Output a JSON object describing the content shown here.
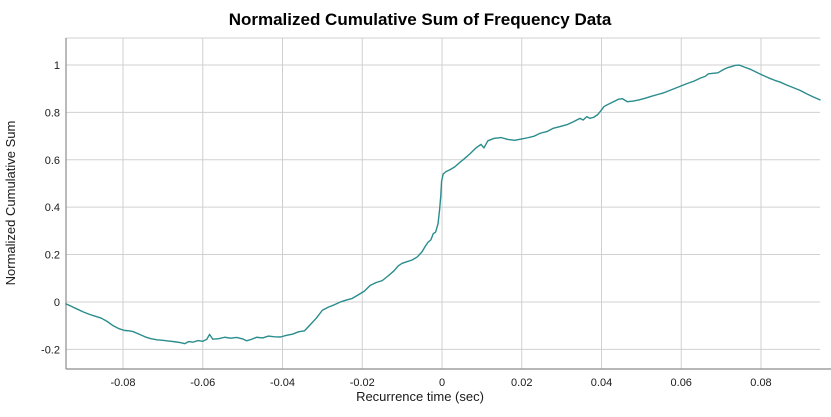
{
  "chart_data": {
    "type": "line",
    "title": "Normalized Cumulative Sum of Frequency Data",
    "xlabel": "Recurrence time (sec)",
    "ylabel": "Normalized Cumulative Sum",
    "xlim": [
      -0.0943,
      0.0948
    ],
    "ylim": [
      -0.283,
      1.114
    ],
    "xticks": [
      -0.08,
      -0.06,
      -0.04,
      -0.02,
      0,
      0.02,
      0.04,
      0.06,
      0.08
    ],
    "xtick_labels": [
      "-0.08",
      "-0.06",
      "-0.04",
      "-0.02",
      "0",
      "0.02",
      "0.04",
      "0.06",
      "0.08"
    ],
    "yticks": [
      -0.2,
      0,
      0.2,
      0.4,
      0.6,
      0.8,
      1
    ],
    "ytick_labels": [
      "-0.2",
      "0",
      "0.2",
      "0.4",
      "0.6",
      "0.8",
      "1"
    ],
    "grid": true,
    "legend": "none",
    "line_color": "#2a8c8c",
    "grid_color": "#d0d0d0",
    "axis_color": "#8c8c8c",
    "background_color": "#ffffff",
    "points": [
      [
        -0.0943,
        -0.008
      ],
      [
        -0.093,
        -0.018
      ],
      [
        -0.0915,
        -0.03
      ],
      [
        -0.09,
        -0.042
      ],
      [
        -0.0885,
        -0.052
      ],
      [
        -0.087,
        -0.06
      ],
      [
        -0.0855,
        -0.068
      ],
      [
        -0.084,
        -0.082
      ],
      [
        -0.0825,
        -0.1
      ],
      [
        -0.081,
        -0.113
      ],
      [
        -0.0797,
        -0.12
      ],
      [
        -0.0785,
        -0.122
      ],
      [
        -0.0775,
        -0.125
      ],
      [
        -0.076,
        -0.136
      ],
      [
        -0.0745,
        -0.147
      ],
      [
        -0.073,
        -0.155
      ],
      [
        -0.0715,
        -0.16
      ],
      [
        -0.07,
        -0.162
      ],
      [
        -0.0685,
        -0.165
      ],
      [
        -0.067,
        -0.168
      ],
      [
        -0.0655,
        -0.172
      ],
      [
        -0.0645,
        -0.176
      ],
      [
        -0.0635,
        -0.167
      ],
      [
        -0.0625,
        -0.17
      ],
      [
        -0.0612,
        -0.163
      ],
      [
        -0.06,
        -0.166
      ],
      [
        -0.059,
        -0.158
      ],
      [
        -0.0583,
        -0.137
      ],
      [
        -0.0575,
        -0.157
      ],
      [
        -0.056,
        -0.155
      ],
      [
        -0.0545,
        -0.149
      ],
      [
        -0.053,
        -0.153
      ],
      [
        -0.0515,
        -0.15
      ],
      [
        -0.05,
        -0.156
      ],
      [
        -0.049,
        -0.164
      ],
      [
        -0.0478,
        -0.158
      ],
      [
        -0.0465,
        -0.149
      ],
      [
        -0.045,
        -0.152
      ],
      [
        -0.0435,
        -0.144
      ],
      [
        -0.042,
        -0.147
      ],
      [
        -0.0405,
        -0.148
      ],
      [
        -0.039,
        -0.141
      ],
      [
        -0.0375,
        -0.136
      ],
      [
        -0.036,
        -0.126
      ],
      [
        -0.0345,
        -0.122
      ],
      [
        -0.033,
        -0.095
      ],
      [
        -0.0315,
        -0.068
      ],
      [
        -0.03,
        -0.035
      ],
      [
        -0.0285,
        -0.022
      ],
      [
        -0.027,
        -0.012
      ],
      [
        -0.0255,
        0.0
      ],
      [
        -0.024,
        0.008
      ],
      [
        -0.0225,
        0.015
      ],
      [
        -0.021,
        0.03
      ],
      [
        -0.0195,
        0.045
      ],
      [
        -0.018,
        0.07
      ],
      [
        -0.0165,
        0.082
      ],
      [
        -0.015,
        0.09
      ],
      [
        -0.0135,
        0.11
      ],
      [
        -0.012,
        0.132
      ],
      [
        -0.011,
        0.152
      ],
      [
        -0.01,
        0.163
      ],
      [
        -0.0088,
        0.17
      ],
      [
        -0.0075,
        0.177
      ],
      [
        -0.0062,
        0.19
      ],
      [
        -0.005,
        0.212
      ],
      [
        -0.0042,
        0.235
      ],
      [
        -0.0035,
        0.252
      ],
      [
        -0.0028,
        0.262
      ],
      [
        -0.0022,
        0.288
      ],
      [
        -0.0016,
        0.295
      ],
      [
        -0.001,
        0.33
      ],
      [
        -0.0006,
        0.39
      ],
      [
        -0.0003,
        0.45
      ],
      [
        -0.0001,
        0.51
      ],
      [
        0.0003,
        0.54
      ],
      [
        0.001,
        0.55
      ],
      [
        0.002,
        0.558
      ],
      [
        0.0032,
        0.57
      ],
      [
        0.0044,
        0.588
      ],
      [
        0.0055,
        0.603
      ],
      [
        0.007,
        0.625
      ],
      [
        0.0085,
        0.65
      ],
      [
        0.0098,
        0.665
      ],
      [
        0.0105,
        0.65
      ],
      [
        0.0115,
        0.68
      ],
      [
        0.013,
        0.69
      ],
      [
        0.0148,
        0.694
      ],
      [
        0.0165,
        0.686
      ],
      [
        0.0182,
        0.682
      ],
      [
        0.02,
        0.688
      ],
      [
        0.0215,
        0.693
      ],
      [
        0.023,
        0.699
      ],
      [
        0.0246,
        0.712
      ],
      [
        0.0263,
        0.719
      ],
      [
        0.0279,
        0.733
      ],
      [
        0.0296,
        0.74
      ],
      [
        0.0313,
        0.748
      ],
      [
        0.0329,
        0.76
      ],
      [
        0.0338,
        0.768
      ],
      [
        0.0346,
        0.775
      ],
      [
        0.0354,
        0.768
      ],
      [
        0.0363,
        0.782
      ],
      [
        0.0371,
        0.775
      ],
      [
        0.038,
        0.779
      ],
      [
        0.039,
        0.79
      ],
      [
        0.0398,
        0.806
      ],
      [
        0.0406,
        0.824
      ],
      [
        0.0414,
        0.832
      ],
      [
        0.043,
        0.845
      ],
      [
        0.0442,
        0.855
      ],
      [
        0.0452,
        0.858
      ],
      [
        0.0465,
        0.845
      ],
      [
        0.048,
        0.848
      ],
      [
        0.0495,
        0.853
      ],
      [
        0.051,
        0.86
      ],
      [
        0.0525,
        0.868
      ],
      [
        0.054,
        0.875
      ],
      [
        0.0555,
        0.882
      ],
      [
        0.057,
        0.892
      ],
      [
        0.0585,
        0.902
      ],
      [
        0.06,
        0.912
      ],
      [
        0.0615,
        0.922
      ],
      [
        0.0632,
        0.932
      ],
      [
        0.0647,
        0.944
      ],
      [
        0.066,
        0.952
      ],
      [
        0.0668,
        0.963
      ],
      [
        0.068,
        0.965
      ],
      [
        0.0692,
        0.967
      ],
      [
        0.0705,
        0.98
      ],
      [
        0.0715,
        0.988
      ],
      [
        0.0725,
        0.993
      ],
      [
        0.0735,
        0.998
      ],
      [
        0.0745,
        1.0
      ],
      [
        0.076,
        0.99
      ],
      [
        0.0772,
        0.983
      ],
      [
        0.0788,
        0.97
      ],
      [
        0.0803,
        0.958
      ],
      [
        0.082,
        0.945
      ],
      [
        0.0835,
        0.935
      ],
      [
        0.0848,
        0.928
      ],
      [
        0.0865,
        0.915
      ],
      [
        0.088,
        0.905
      ],
      [
        0.0898,
        0.893
      ],
      [
        0.0915,
        0.878
      ],
      [
        0.093,
        0.866
      ],
      [
        0.0948,
        0.853
      ]
    ]
  }
}
